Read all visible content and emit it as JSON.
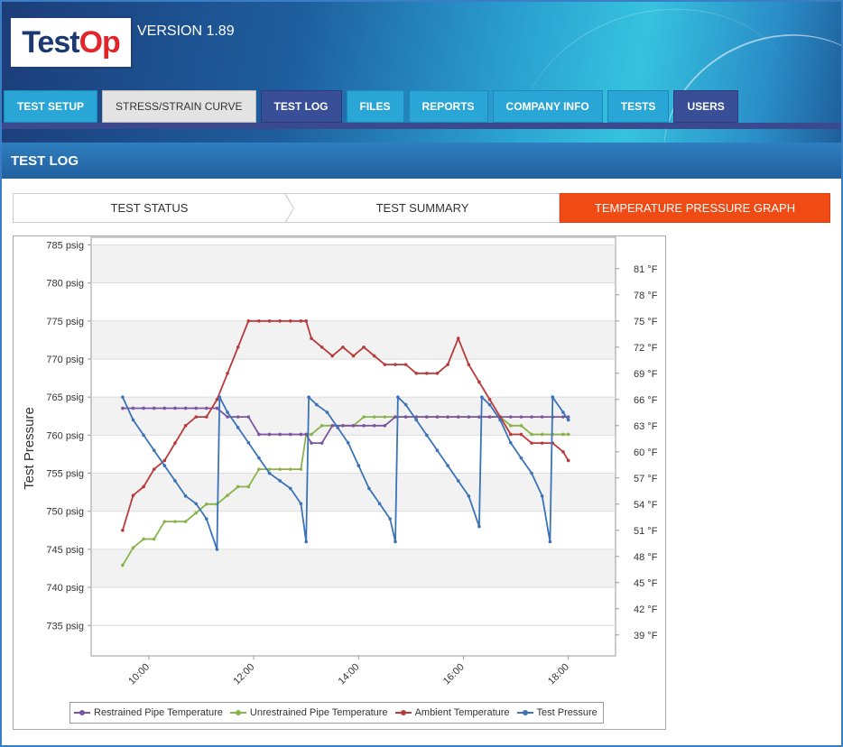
{
  "app": {
    "logo_text_1": "Test",
    "logo_text_2": "Op",
    "version": "VERSION 1.89"
  },
  "nav": {
    "tabs": [
      {
        "label": "TEST SETUP"
      },
      {
        "label": "STRESS/STRAIN CURVE"
      },
      {
        "label": "TEST LOG"
      },
      {
        "label": "FILES"
      },
      {
        "label": "REPORTS"
      },
      {
        "label": "COMPANY INFO"
      },
      {
        "label": "TESTS"
      },
      {
        "label": "USERS"
      }
    ]
  },
  "section": {
    "title": "TEST LOG"
  },
  "steps": [
    {
      "label": "TEST STATUS"
    },
    {
      "label": "TEST SUMMARY"
    },
    {
      "label": "TEMPERATURE PRESSURE GRAPH"
    }
  ],
  "colors": {
    "restrained": "#7b55a0",
    "unrestrained": "#8ab34a",
    "ambient": "#b93a3a",
    "pressure": "#3b73b9",
    "accent": "#f04a15"
  },
  "chart_data": {
    "type": "line",
    "ylabel": "Test Pressure",
    "left_axis": {
      "unit": "psig",
      "range": [
        731,
        786
      ],
      "ticks": [
        785,
        780,
        775,
        770,
        765,
        760,
        755,
        750,
        745,
        740,
        735
      ],
      "tick_labels": [
        "785 psig",
        "780 psig",
        "775 psig",
        "770 psig",
        "765 psig",
        "760 psig",
        "755 psig",
        "750 psig",
        "745 psig",
        "740 psig",
        "735 psig"
      ]
    },
    "right_axis": {
      "unit": "°F",
      "range": [
        36.6,
        84.6
      ],
      "ticks": [
        81,
        78,
        75,
        72,
        69,
        66,
        63,
        60,
        57,
        54,
        51,
        48,
        45,
        42,
        39
      ],
      "tick_labels": [
        "81 °F",
        "78 °F",
        "75 °F",
        "72 °F",
        "69 °F",
        "66 °F",
        "63 °F",
        "60 °F",
        "57 °F",
        "54 °F",
        "51 °F",
        "48 °F",
        "45 °F",
        "42 °F",
        "39 °F"
      ]
    },
    "x_axis": {
      "range": [
        8.9,
        18.9
      ],
      "ticks": [
        10,
        12,
        14,
        16,
        18
      ],
      "tick_labels": [
        "10:00",
        "12:00",
        "14:00",
        "16:00",
        "18:00"
      ]
    },
    "grid": true,
    "legend": "bottom",
    "series": [
      {
        "name": "Restrained Pipe Temperature",
        "axis": "right",
        "x": [
          9.5,
          9.7,
          9.9,
          10.1,
          10.3,
          10.5,
          10.7,
          10.9,
          11.1,
          11.3,
          11.5,
          11.7,
          11.9,
          12.1,
          12.3,
          12.5,
          12.7,
          12.9,
          13.0,
          13.1,
          13.3,
          13.5,
          13.7,
          13.9,
          14.1,
          14.3,
          14.5,
          14.7,
          14.9,
          15.1,
          15.3,
          15.5,
          15.7,
          15.9,
          16.1,
          16.3,
          16.5,
          16.7,
          16.9,
          17.1,
          17.3,
          17.5,
          17.7,
          17.9,
          18.0
        ],
        "y": [
          65,
          65,
          65,
          65,
          65,
          65,
          65,
          65,
          65,
          65,
          64,
          64,
          64,
          62,
          62,
          62,
          62,
          62,
          62,
          61,
          61,
          63,
          63,
          63,
          63,
          63,
          63,
          64,
          64,
          64,
          64,
          64,
          64,
          64,
          64,
          64,
          64,
          64,
          64,
          64,
          64,
          64,
          64,
          64,
          64
        ]
      },
      {
        "name": "Unrestrained Pipe Temperature",
        "axis": "right",
        "x": [
          9.5,
          9.7,
          9.9,
          10.1,
          10.3,
          10.5,
          10.7,
          10.9,
          11.1,
          11.3,
          11.5,
          11.7,
          11.9,
          12.1,
          12.3,
          12.5,
          12.7,
          12.9,
          13.0,
          13.1,
          13.3,
          13.5,
          13.7,
          13.9,
          14.1,
          14.3,
          14.5,
          14.7,
          14.9,
          15.1,
          15.3,
          15.5,
          15.7,
          15.9,
          16.1,
          16.3,
          16.5,
          16.7,
          16.9,
          17.1,
          17.3,
          17.5,
          17.7,
          17.9,
          18.0
        ],
        "y": [
          47,
          49,
          50,
          50,
          52,
          52,
          52,
          53,
          54,
          54,
          55,
          56,
          56,
          58,
          58,
          58,
          58,
          58,
          62,
          62,
          63,
          63,
          63,
          63,
          64,
          64,
          64,
          64,
          64,
          64,
          64,
          64,
          64,
          64,
          64,
          64,
          64,
          64,
          63,
          63,
          62,
          62,
          62,
          62,
          62
        ]
      },
      {
        "name": "Ambient Temperature",
        "axis": "right",
        "x": [
          9.5,
          9.7,
          9.9,
          10.1,
          10.3,
          10.5,
          10.7,
          10.9,
          11.1,
          11.3,
          11.5,
          11.7,
          11.9,
          12.1,
          12.3,
          12.5,
          12.7,
          12.9,
          13.0,
          13.1,
          13.3,
          13.5,
          13.7,
          13.9,
          14.1,
          14.3,
          14.5,
          14.7,
          14.9,
          15.1,
          15.3,
          15.5,
          15.7,
          15.9,
          16.1,
          16.3,
          16.5,
          16.7,
          16.9,
          17.1,
          17.3,
          17.5,
          17.7,
          17.9,
          18.0
        ],
        "y": [
          51,
          55,
          56,
          58,
          59,
          61,
          63,
          64,
          64,
          66,
          69,
          72,
          75,
          75,
          75,
          75,
          75,
          75,
          75,
          73,
          72,
          71,
          72,
          71,
          72,
          71,
          70,
          70,
          70,
          69,
          69,
          69,
          70,
          73,
          70,
          68,
          66,
          64,
          62,
          62,
          61,
          61,
          61,
          60,
          59
        ]
      },
      {
        "name": "Test Pressure",
        "axis": "left",
        "x": [
          9.5,
          9.7,
          9.9,
          10.1,
          10.3,
          10.5,
          10.7,
          10.9,
          11.1,
          11.3,
          11.35,
          11.5,
          11.7,
          11.9,
          12.1,
          12.3,
          12.5,
          12.7,
          12.9,
          13.0,
          13.05,
          13.2,
          13.4,
          13.6,
          13.8,
          14.0,
          14.2,
          14.4,
          14.6,
          14.7,
          14.75,
          14.9,
          15.1,
          15.3,
          15.5,
          15.7,
          15.9,
          16.1,
          16.3,
          16.35,
          16.5,
          16.7,
          16.9,
          17.1,
          17.3,
          17.5,
          17.65,
          17.7,
          17.9,
          18.0
        ],
        "y": [
          765,
          762,
          760,
          758,
          756,
          754,
          752,
          751,
          749,
          745,
          765,
          763,
          761,
          759,
          757,
          755,
          754,
          753,
          751,
          746,
          765,
          764,
          763,
          761,
          759,
          756,
          753,
          751,
          749,
          746,
          765,
          764,
          762,
          760,
          758,
          756,
          754,
          752,
          748,
          765,
          764,
          762,
          759,
          757,
          755,
          752,
          746,
          765,
          763,
          762
        ]
      }
    ]
  }
}
